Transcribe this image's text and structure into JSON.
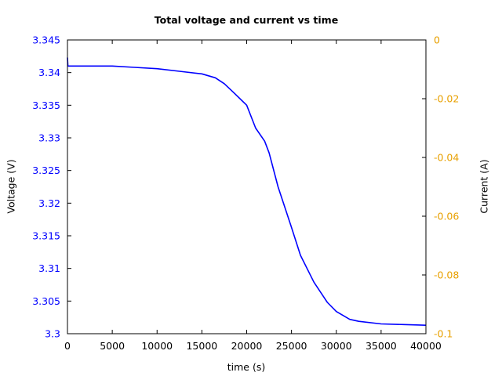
{
  "chart_data": {
    "type": "line",
    "title": "Total voltage and current vs time",
    "xlabel": "time (s)",
    "ylabel": "Voltage (V)",
    "ylabel_right": "Current (A)",
    "xlim": [
      0,
      40000
    ],
    "ylim": [
      3.3,
      3.345
    ],
    "ylim_right": [
      -0.1,
      0
    ],
    "grid": false,
    "legend": "none",
    "x_ticks": [
      "0",
      "5000",
      "10000",
      "15000",
      "20000",
      "25000",
      "30000",
      "35000",
      "40000"
    ],
    "y_ticks_left": [
      "3.3",
      "3.305",
      "3.31",
      "3.315",
      "3.32",
      "3.325",
      "3.33",
      "3.335",
      "3.34",
      "3.345"
    ],
    "y_ticks_right": [
      "-0.1",
      "-0.08",
      "-0.06",
      "-0.04",
      "-0.02",
      "0"
    ],
    "colors": {
      "voltage": "#0000ff",
      "current_axis": "#e8a000",
      "axes": "#000000"
    },
    "series": [
      {
        "name": "Voltage",
        "axis": "left",
        "color": "#0000ff",
        "x": [
          0,
          50,
          200,
          2500,
          5000,
          7500,
          10000,
          12500,
          15000,
          16500,
          17500,
          18500,
          20000,
          21000,
          22000,
          22500,
          23500,
          25000,
          26000,
          27500,
          29000,
          30000,
          31500,
          32500,
          35000,
          37500,
          40000
        ],
        "values": [
          3.3423,
          3.341,
          3.341,
          3.341,
          3.341,
          3.3408,
          3.3406,
          3.3402,
          3.3398,
          3.3392,
          3.3383,
          3.337,
          3.335,
          3.3315,
          3.3295,
          3.3277,
          3.3225,
          3.3163,
          3.312,
          3.3079,
          3.3048,
          3.3034,
          3.3022,
          3.3019,
          3.3015,
          3.3014,
          3.3013
        ]
      }
    ]
  }
}
